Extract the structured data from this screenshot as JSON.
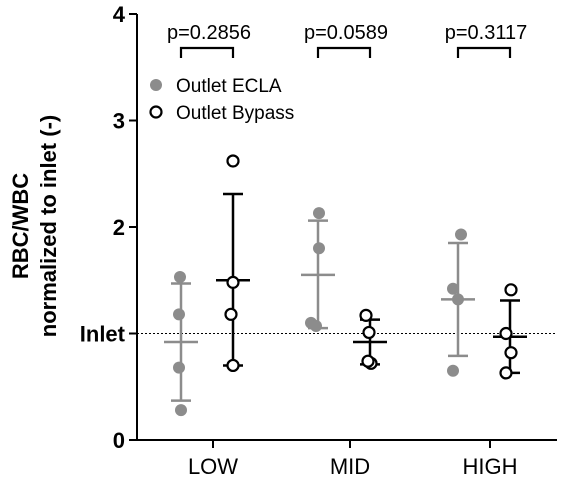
{
  "chart_data": {
    "type": "scatter",
    "ylabel_line1": "RBC/WBC",
    "ylabel_line2": "normalized to inlet (-)",
    "ylim": [
      0,
      4
    ],
    "yticks": [
      {
        "value": 0,
        "label": "0"
      },
      {
        "value": 1,
        "label": "Inlet"
      },
      {
        "value": 2,
        "label": "2"
      },
      {
        "value": 3,
        "label": "3"
      },
      {
        "value": 4,
        "label": "4"
      }
    ],
    "reference_line": {
      "value": 1.0,
      "style": "dotted"
    },
    "categories": [
      "LOW",
      "MID",
      "HIGH"
    ],
    "legend": {
      "placement": "top-left"
    },
    "series": [
      {
        "name": "Outlet ECLA",
        "marker": "filled-circle",
        "color": "#8c8c8c",
        "groups": [
          {
            "points": [
              1.53,
              1.18,
              0.68,
              0.28
            ],
            "mean": 0.92,
            "sd_low": 0.37,
            "sd_high": 1.47
          },
          {
            "points": [
              2.13,
              1.8,
              1.1,
              1.07
            ],
            "mean": 1.55,
            "sd_low": 1.05,
            "sd_high": 2.06
          },
          {
            "points": [
              1.93,
              1.42,
              1.32,
              0.65
            ],
            "mean": 1.32,
            "sd_low": 0.79,
            "sd_high": 1.85
          }
        ]
      },
      {
        "name": "Outlet Bypass",
        "marker": "open-circle",
        "color": "#000000",
        "groups": [
          {
            "points": [
              2.62,
              1.48,
              1.18,
              0.7
            ],
            "mean": 1.5,
            "sd_low": 0.7,
            "sd_high": 2.31
          },
          {
            "points": [
              1.17,
              1.01,
              0.72,
              0.74
            ],
            "mean": 0.92,
            "sd_low": 0.71,
            "sd_high": 1.13
          },
          {
            "points": [
              1.41,
              1.0,
              0.82,
              0.63
            ],
            "mean": 0.97,
            "sd_low": 0.63,
            "sd_high": 1.31
          }
        ]
      }
    ],
    "annotations": [
      {
        "text": "p=0.2856",
        "category": "LOW"
      },
      {
        "text": "p=0.0589",
        "category": "MID"
      },
      {
        "text": "p=0.3117",
        "category": "HIGH"
      }
    ]
  }
}
